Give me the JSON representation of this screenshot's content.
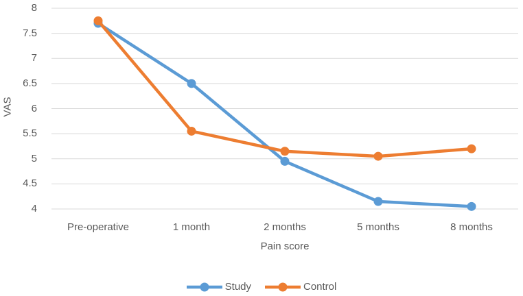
{
  "chart_data": {
    "type": "line",
    "title": "",
    "categories": [
      "Pre-operative",
      "1 month",
      "2 months",
      "5 months",
      "8 months"
    ],
    "series": [
      {
        "name": "Study",
        "color": "#5B9BD5",
        "values": [
          7.7,
          6.5,
          4.95,
          4.15,
          4.05
        ]
      },
      {
        "name": "Control",
        "color": "#ED7D31",
        "values": [
          7.75,
          5.55,
          5.15,
          5.05,
          5.2
        ]
      }
    ],
    "xlabel": "Pain score",
    "ylabel": "VAS",
    "ylim": [
      4,
      8
    ],
    "ytick_labels": [
      "8",
      "7.5",
      "7",
      "6.5",
      "6",
      "5.5",
      "5",
      "4.5",
      "4"
    ],
    "grid": "horizontal",
    "legend_position": "bottom",
    "gridline_color": "#D9D9D9",
    "text_color": "#595959",
    "background": "#FFFFFF",
    "marker": "circle"
  }
}
